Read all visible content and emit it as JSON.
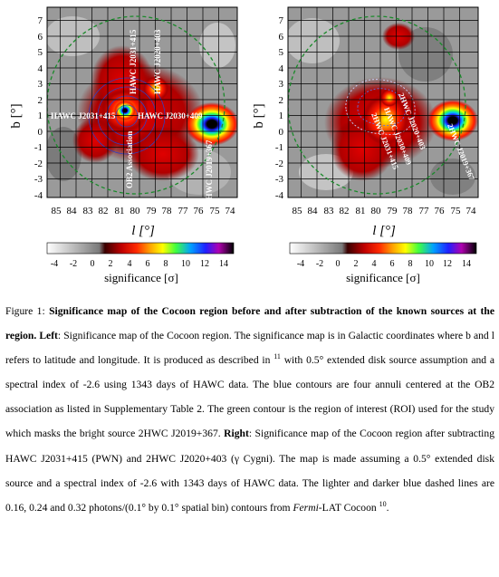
{
  "panels": [
    {
      "id": "left",
      "xlabel": "l [°]",
      "ylabel": "b [°]",
      "x_ticks": [
        "85",
        "84",
        "83",
        "82",
        "81",
        "80",
        "79",
        "78",
        "77",
        "76",
        "75",
        "74"
      ],
      "y_ticks": [
        "7",
        "6",
        "5",
        "4",
        "3",
        "2",
        "1",
        "0",
        "-1",
        "-2",
        "-3",
        "-4"
      ],
      "sources": [
        "HAWC J2031+415",
        "HAWC J2020+403",
        "HAWC J2031+415",
        "HAWC J2030+409",
        "2HWC J2019+367",
        "OB2 Association"
      ],
      "colorbar": {
        "ticks": [
          "-4",
          "-2",
          "0",
          "2",
          "4",
          "6",
          "8",
          "10",
          "12",
          "14"
        ],
        "label": "significance [σ]"
      }
    },
    {
      "id": "right",
      "xlabel": "l [°]",
      "ylabel": "b [°]",
      "x_ticks": [
        "85",
        "84",
        "83",
        "82",
        "81",
        "80",
        "79",
        "78",
        "77",
        "76",
        "75",
        "74"
      ],
      "y_ticks": [
        "7",
        "6",
        "5",
        "4",
        "3",
        "2",
        "1",
        "0",
        "-1",
        "-2",
        "-3",
        "-4"
      ],
      "sources": [
        "2HWC J2020+403",
        "HAWC J2030+409",
        "2HWC J2031+415",
        "2HWC J2019+367"
      ],
      "colorbar": {
        "ticks": [
          "-4",
          "-2",
          "0",
          "2",
          "4",
          "6",
          "8",
          "10",
          "12",
          "14"
        ],
        "label": "significance [σ]"
      }
    }
  ],
  "caption": {
    "fig_label": "Figure 1:",
    "title": "Significance map of the Cocoon region before and after subtraction of the known sources at the region.",
    "left_label": "Left",
    "left_a": ": Significance map of the Cocoon region. The significance map is in Galactic coordinates where b and l refers to latitude and longitude.  It is produced as described in",
    "ref_a": "11",
    "left_b": "with 0.5° extended disk source assumption and a spectral index of -2.6 using 1343 days of HAWC data. The blue contours are four annuli centered at the OB2 association as listed in Supplementary Table 2. The green contour is the region of interest (ROI) used for the study which masks the bright source 2HWC J2019+367.",
    "right_label": "Right",
    "right_a": ": Significance map of the Cocoon region after subtracting HAWC J2031+415 (PWN) and 2HWC J2020+403 (γ Cygni). The map is made assuming a 0.5° extended disk source and a spectral index of -2.6 with 1343 days of HAWC data. The lighter and darker blue dashed lines are 0.16, 0.24 and 0.32 photons/(0.1° by 0.1° spatial bin) contours from",
    "fermi": "Fermi",
    "right_b": "-LAT Cocoon",
    "ref_b": "10",
    "right_c": "."
  }
}
